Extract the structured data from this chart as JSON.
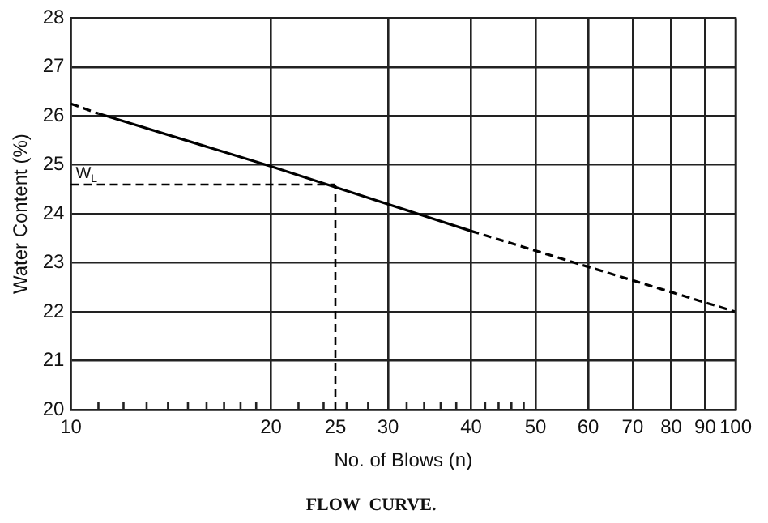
{
  "chart_data": {
    "type": "line",
    "title": "FLOW  CURVE.",
    "xlabel": "No. of Blows (n)",
    "ylabel": "Water Content (%)",
    "log": "x",
    "xlim": [
      10,
      100
    ],
    "ylim": [
      20,
      28
    ],
    "xticks": [
      10,
      {
        "value": 11,
        "label": null
      },
      {
        "value": 12,
        "label": null
      },
      {
        "value": 13,
        "label": null
      },
      {
        "value": 14,
        "label": null
      },
      {
        "value": 15,
        "label": null
      },
      {
        "value": 16,
        "label": null
      },
      {
        "value": 17,
        "label": null
      },
      {
        "value": 18,
        "label": null
      },
      {
        "value": 19,
        "label": null
      },
      20,
      {
        "value": 22,
        "label": null
      },
      {
        "value": 24,
        "label": null
      },
      25,
      {
        "value": 26,
        "label": null
      },
      {
        "value": 28,
        "label": null
      },
      30,
      {
        "value": 32,
        "label": null
      },
      {
        "value": 34,
        "label": null
      },
      {
        "value": 36,
        "label": null
      },
      {
        "value": 38,
        "label": null
      },
      40,
      {
        "value": 42,
        "label": null
      },
      {
        "value": 44,
        "label": null
      },
      {
        "value": 46,
        "label": null
      },
      {
        "value": 48,
        "label": null
      },
      50,
      60,
      70,
      80,
      90,
      100
    ],
    "yticks": [
      20,
      21,
      22,
      23,
      24,
      25,
      26,
      27,
      28
    ],
    "grid": true,
    "legend": false,
    "marker": "none",
    "series": [
      {
        "color": "#000000",
        "line_style": "dashed",
        "x": [
          10,
          11
        ],
        "values": [
          26.25,
          26.05
        ]
      },
      {
        "color": "#000000",
        "line_style": "solid",
        "x": [
          11,
          20,
          40
        ],
        "values": [
          26.05,
          24.97,
          23.65
        ]
      },
      {
        "color": "#000000",
        "line_style": "dashed",
        "x": [
          40,
          100
        ],
        "values": [
          23.65,
          22.0
        ]
      }
    ],
    "ref_lines": [
      {
        "axis": "y",
        "value": 24.6,
        "label": "W$_{L}$",
        "line_style": "dashed",
        "color": "#000000"
      },
      {
        "axis": "x",
        "value": 25,
        "line_style": "dashed",
        "color": "#000000"
      }
    ]
  }
}
